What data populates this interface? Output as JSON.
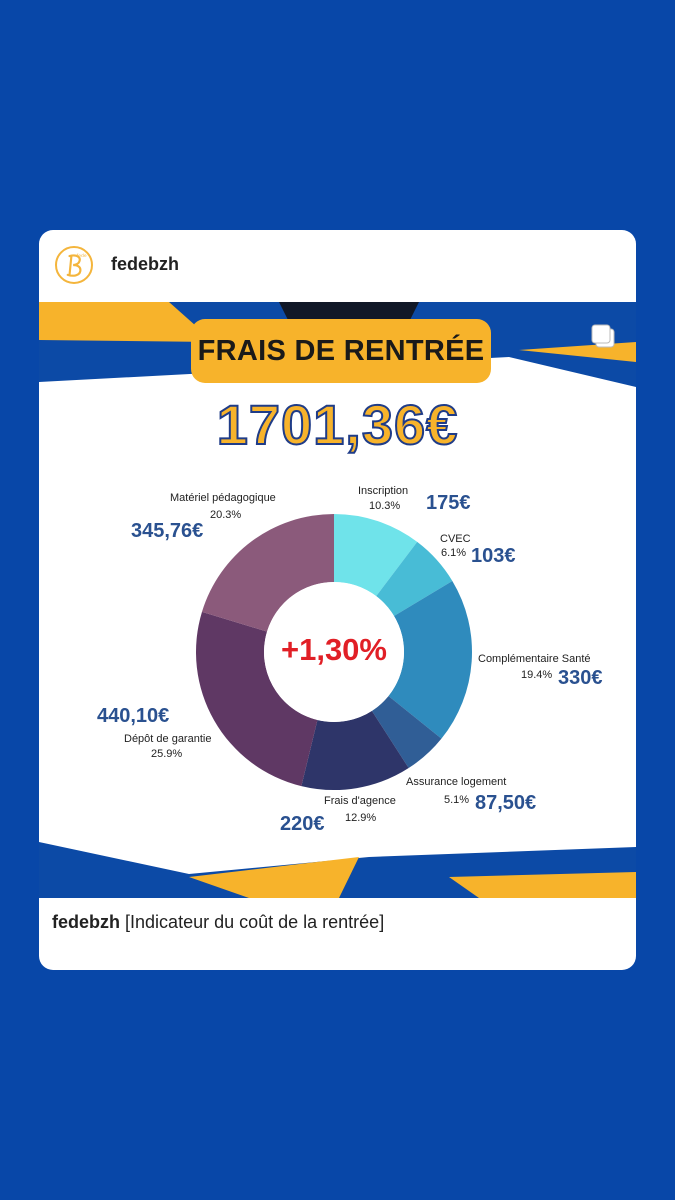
{
  "post": {
    "username": "fedebzh",
    "caption_user": "fedebzh",
    "caption_text": "[Indicateur du coût de la rentrée]",
    "avatar_icon": "fede-b-logo",
    "multi_image_icon": "carousel-icon"
  },
  "infographic": {
    "title": "FRAIS DE RENTRÉE",
    "total": "1701,36€",
    "center_change": "+1,30%"
  },
  "colors": {
    "background": "#0847a8",
    "accent_yellow": "#f7b32b",
    "amount_blue": "#2a5190",
    "change_red": "#e11f26"
  },
  "chart_data": {
    "type": "pie",
    "title": "FRAIS DE RENTRÉE",
    "center_label": "+1,30%",
    "series": [
      {
        "name": "Inscription",
        "percent": 10.3,
        "percent_label": "10.3%",
        "amount": "175€",
        "color": "#6fe3ea"
      },
      {
        "name": "CVEC",
        "percent": 6.1,
        "percent_label": "6.1%",
        "amount": "103€",
        "color": "#48bcd6"
      },
      {
        "name": "Complémentaire Santé",
        "percent": 19.4,
        "percent_label": "19.4%",
        "amount": "330€",
        "color": "#2f8bbd"
      },
      {
        "name": "Assurance logement",
        "percent": 5.1,
        "percent_label": "5.1%",
        "amount": "87,50€",
        "color": "#305e96"
      },
      {
        "name": "Frais d'agence",
        "percent": 12.9,
        "percent_label": "12.9%",
        "amount": "220€",
        "color": "#2e3569"
      },
      {
        "name": "Dépôt de garantie",
        "percent": 25.9,
        "percent_label": "25.9%",
        "amount": "440,10€",
        "color": "#5f3864"
      },
      {
        "name": "Matériel pédagogique",
        "percent": 20.3,
        "percent_label": "20.3%",
        "amount": "345,76€",
        "color": "#8b5a7b"
      }
    ]
  }
}
